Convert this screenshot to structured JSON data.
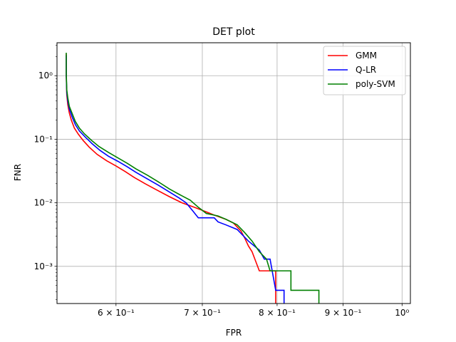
{
  "chart_data": {
    "type": "line",
    "title": "DET plot",
    "xlabel": "FPR",
    "ylabel": "FNR",
    "xscale": "log",
    "yscale": "log",
    "xlim": [
      0.54,
      1.015
    ],
    "ylim": [
      0.00026,
      3.3
    ],
    "x_ticks": [
      {
        "value": 0.6,
        "label": "6 × 10⁻¹"
      },
      {
        "value": 0.7,
        "label": "7 × 10⁻¹"
      },
      {
        "value": 0.8,
        "label": "8 × 10⁻¹"
      },
      {
        "value": 0.9,
        "label": "9 × 10⁻¹"
      },
      {
        "value": 1.0,
        "label": "10⁰"
      }
    ],
    "y_ticks": [
      {
        "value": 0.001,
        "label": "10⁻³"
      },
      {
        "value": 0.01,
        "label": "10⁻²"
      },
      {
        "value": 0.1,
        "label": "10⁻¹"
      },
      {
        "value": 1,
        "label": "10⁰"
      }
    ],
    "grid": true,
    "legend_position": "upper right",
    "series": [
      {
        "name": "GMM",
        "color": "#ff0000",
        "points": [
          [
            0.549,
            2.2
          ],
          [
            0.549,
            1.0
          ],
          [
            0.5495,
            0.5
          ],
          [
            0.5505,
            0.35
          ],
          [
            0.552,
            0.26
          ],
          [
            0.554,
            0.2
          ],
          [
            0.557,
            0.15
          ],
          [
            0.561,
            0.12
          ],
          [
            0.566,
            0.095
          ],
          [
            0.572,
            0.075
          ],
          [
            0.58,
            0.058
          ],
          [
            0.59,
            0.046
          ],
          [
            0.6,
            0.038
          ],
          [
            0.61,
            0.031
          ],
          [
            0.62,
            0.025
          ],
          [
            0.632,
            0.02
          ],
          [
            0.645,
            0.016
          ],
          [
            0.66,
            0.0125
          ],
          [
            0.675,
            0.01
          ],
          [
            0.69,
            0.0085
          ],
          [
            0.705,
            0.0072
          ],
          [
            0.715,
            0.0064
          ],
          [
            0.73,
            0.0055
          ],
          [
            0.74,
            0.0048
          ],
          [
            0.75,
            0.0036
          ],
          [
            0.755,
            0.0028
          ],
          [
            0.76,
            0.0021
          ],
          [
            0.765,
            0.0017
          ],
          [
            0.77,
            0.0012
          ],
          [
            0.775,
            0.00085
          ],
          [
            0.798,
            0.00085
          ],
          [
            0.798,
            0.0004
          ],
          [
            0.798,
            0.00026
          ]
        ]
      },
      {
        "name": "Q-LR",
        "color": "#0000ff",
        "points": [
          [
            0.549,
            2.1
          ],
          [
            0.549,
            1.0
          ],
          [
            0.5495,
            0.55
          ],
          [
            0.5505,
            0.4
          ],
          [
            0.552,
            0.3
          ],
          [
            0.555,
            0.22
          ],
          [
            0.558,
            0.17
          ],
          [
            0.562,
            0.135
          ],
          [
            0.568,
            0.108
          ],
          [
            0.575,
            0.085
          ],
          [
            0.583,
            0.067
          ],
          [
            0.592,
            0.054
          ],
          [
            0.602,
            0.045
          ],
          [
            0.612,
            0.037
          ],
          [
            0.622,
            0.03
          ],
          [
            0.634,
            0.024
          ],
          [
            0.647,
            0.019
          ],
          [
            0.66,
            0.0148
          ],
          [
            0.672,
            0.0118
          ],
          [
            0.68,
            0.01
          ],
          [
            0.688,
            0.0075
          ],
          [
            0.695,
            0.0058
          ],
          [
            0.715,
            0.0058
          ],
          [
            0.72,
            0.005
          ],
          [
            0.73,
            0.0045
          ],
          [
            0.745,
            0.0038
          ],
          [
            0.76,
            0.0025
          ],
          [
            0.775,
            0.0018
          ],
          [
            0.782,
            0.0013
          ],
          [
            0.79,
            0.0013
          ],
          [
            0.798,
            0.00042
          ],
          [
            0.81,
            0.00042
          ],
          [
            0.81,
            0.00026
          ]
        ]
      },
      {
        "name": "poly-SVM",
        "color": "#008000",
        "points": [
          [
            0.549,
            2.3
          ],
          [
            0.549,
            1.1
          ],
          [
            0.5495,
            0.6
          ],
          [
            0.5505,
            0.45
          ],
          [
            0.552,
            0.33
          ],
          [
            0.555,
            0.25
          ],
          [
            0.558,
            0.19
          ],
          [
            0.562,
            0.15
          ],
          [
            0.567,
            0.122
          ],
          [
            0.574,
            0.097
          ],
          [
            0.582,
            0.077
          ],
          [
            0.592,
            0.062
          ],
          [
            0.602,
            0.051
          ],
          [
            0.612,
            0.042
          ],
          [
            0.622,
            0.034
          ],
          [
            0.635,
            0.027
          ],
          [
            0.648,
            0.021
          ],
          [
            0.66,
            0.0165
          ],
          [
            0.672,
            0.0135
          ],
          [
            0.685,
            0.011
          ],
          [
            0.695,
            0.0085
          ],
          [
            0.705,
            0.0068
          ],
          [
            0.72,
            0.0062
          ],
          [
            0.73,
            0.0055
          ],
          [
            0.745,
            0.0045
          ],
          [
            0.755,
            0.0034
          ],
          [
            0.765,
            0.0025
          ],
          [
            0.775,
            0.0017
          ],
          [
            0.785,
            0.0013
          ],
          [
            0.79,
            0.00085
          ],
          [
            0.82,
            0.00085
          ],
          [
            0.82,
            0.00042
          ],
          [
            0.862,
            0.00042
          ],
          [
            0.862,
            0.00026
          ]
        ]
      }
    ]
  }
}
